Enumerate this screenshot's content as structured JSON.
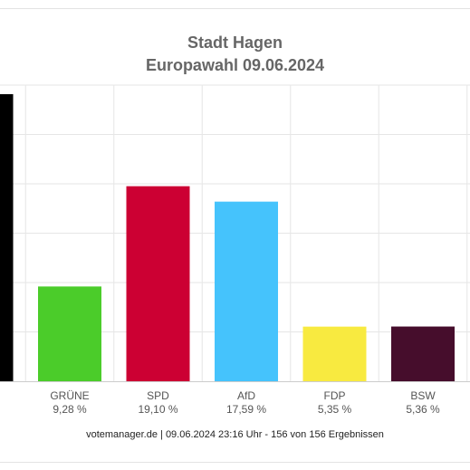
{
  "chart_data": {
    "type": "bar",
    "title": "Stadt Hagen",
    "subtitle": "Europawahl 09.06.2024",
    "categories": [
      "",
      "GRÜNE",
      "SPD",
      "AfD",
      "FDP",
      "BSW"
    ],
    "values": [
      null,
      9.28,
      19.1,
      17.59,
      5.35,
      5.36
    ],
    "value_labels": [
      "%",
      "9,28 %",
      "19,10 %",
      "17,59 %",
      "5,35 %",
      "5,36 %"
    ],
    "colors": [
      "#000000",
      "#4bcc2a",
      "#cc0033",
      "#45c3fc",
      "#f8ea40",
      "#460d2c"
    ],
    "ylim": [
      0,
      29
    ],
    "grid": true,
    "legend": "none"
  },
  "footer": "votemanager.de | 09.06.2024 23:16 Uhr - 156 von 156 Ergebnissen"
}
